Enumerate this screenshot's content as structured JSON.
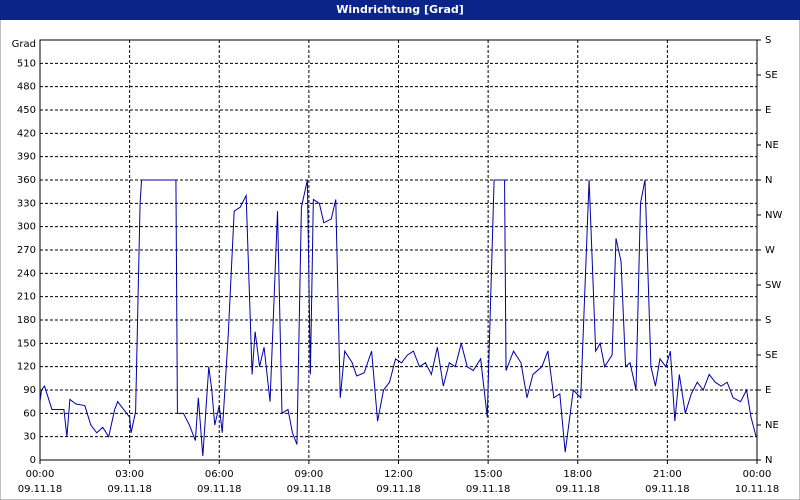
{
  "chart_data": {
    "type": "line",
    "title": "Windrichtung [Grad]",
    "y_label": "Grad",
    "x": [
      0,
      0.05,
      0.15,
      0.4,
      0.8,
      0.9,
      1.0,
      1.2,
      1.5,
      1.7,
      1.9,
      2.1,
      2.3,
      2.5,
      2.6,
      2.8,
      3.0,
      3.05,
      3.2,
      3.35,
      3.4,
      4.55,
      4.6,
      4.8,
      5.0,
      5.2,
      5.3,
      5.45,
      5.65,
      5.75,
      5.85,
      6.0,
      6.1,
      6.3,
      6.5,
      6.7,
      6.9,
      7.1,
      7.2,
      7.35,
      7.5,
      7.7,
      7.95,
      8.1,
      8.3,
      8.45,
      8.6,
      8.75,
      8.95,
      9.05,
      9.15,
      9.35,
      9.5,
      9.75,
      9.9,
      10.05,
      10.2,
      10.45,
      10.6,
      10.85,
      11.1,
      11.3,
      11.5,
      11.7,
      11.9,
      12.1,
      12.3,
      12.5,
      12.7,
      12.9,
      13.1,
      13.3,
      13.5,
      13.7,
      13.9,
      14.1,
      14.3,
      14.5,
      14.75,
      14.97,
      15.2,
      15.55,
      15.6,
      15.85,
      16.1,
      16.3,
      16.5,
      16.8,
      17.0,
      17.2,
      17.4,
      17.58,
      17.85,
      18.1,
      18.38,
      18.6,
      18.75,
      18.9,
      19.15,
      19.28,
      19.45,
      19.6,
      19.75,
      19.95,
      20.1,
      20.25,
      20.45,
      20.6,
      20.75,
      20.95,
      21.1,
      21.25,
      21.4,
      21.6,
      21.8,
      22.0,
      22.2,
      22.4,
      22.6,
      22.8,
      23.0,
      23.2,
      23.45,
      23.65,
      23.8,
      23.97
    ],
    "series": [
      {
        "name": "Windrichtung",
        "color": "#0000a8",
        "values": [
          75,
          90,
          95,
          65,
          65,
          30,
          78,
          72,
          70,
          45,
          35,
          42,
          30,
          65,
          75,
          65,
          55,
          35,
          62,
          330,
          360,
          360,
          60,
          60,
          45,
          25,
          80,
          5,
          120,
          90,
          45,
          70,
          35,
          160,
          320,
          325,
          340,
          110,
          165,
          120,
          145,
          75,
          320,
          60,
          65,
          35,
          20,
          325,
          360,
          110,
          335,
          330,
          305,
          310,
          335,
          80,
          140,
          125,
          108,
          112,
          140,
          50,
          90,
          100,
          130,
          125,
          135,
          140,
          120,
          125,
          110,
          145,
          95,
          125,
          120,
          150,
          120,
          115,
          130,
          55,
          360,
          360,
          115,
          140,
          125,
          80,
          110,
          120,
          140,
          80,
          85,
          10,
          90,
          80,
          360,
          140,
          150,
          120,
          135,
          285,
          255,
          120,
          125,
          90,
          330,
          360,
          120,
          95,
          130,
          120,
          140,
          50,
          110,
          60,
          85,
          100,
          90,
          110,
          100,
          95,
          100,
          80,
          75,
          90,
          55,
          30
        ]
      }
    ],
    "xlim": [
      0,
      24
    ],
    "xticks": [
      {
        "value": 0,
        "label": "00:00"
      },
      {
        "value": 3,
        "label": "03:00"
      },
      {
        "value": 6,
        "label": "06:00"
      },
      {
        "value": 9,
        "label": "09:00"
      },
      {
        "value": 12,
        "label": "12:00"
      },
      {
        "value": 15,
        "label": "15:00"
      },
      {
        "value": 18,
        "label": "18:00"
      },
      {
        "value": 21,
        "label": "21:00"
      },
      {
        "value": 24,
        "label": "00:00"
      }
    ],
    "xtick_dates": [
      "09.11.18",
      "09.11.18",
      "09.11.18",
      "09.11.18",
      "09.11.18",
      "09.11.18",
      "09.11.18",
      "09.11.18",
      "10.11.18"
    ],
    "ylim": [
      0,
      540
    ],
    "yticks": [
      0,
      30,
      60,
      90,
      120,
      150,
      180,
      210,
      240,
      270,
      300,
      330,
      360,
      390,
      420,
      450,
      480,
      510
    ],
    "y2lim": [
      0,
      540
    ],
    "y2ticks": [
      {
        "value": 0,
        "label": "N"
      },
      {
        "value": 45,
        "label": "NE"
      },
      {
        "value": 90,
        "label": "E"
      },
      {
        "value": 135,
        "label": "SE"
      },
      {
        "value": 180,
        "label": "S"
      },
      {
        "value": 225,
        "label": "SW"
      },
      {
        "value": 270,
        "label": "W"
      },
      {
        "value": 315,
        "label": "NW"
      },
      {
        "value": 360,
        "label": "N"
      },
      {
        "value": 405,
        "label": "NE"
      },
      {
        "value": 450,
        "label": "E"
      },
      {
        "value": 495,
        "label": "SE"
      },
      {
        "value": 540,
        "label": "S"
      }
    ],
    "grid": true
  }
}
